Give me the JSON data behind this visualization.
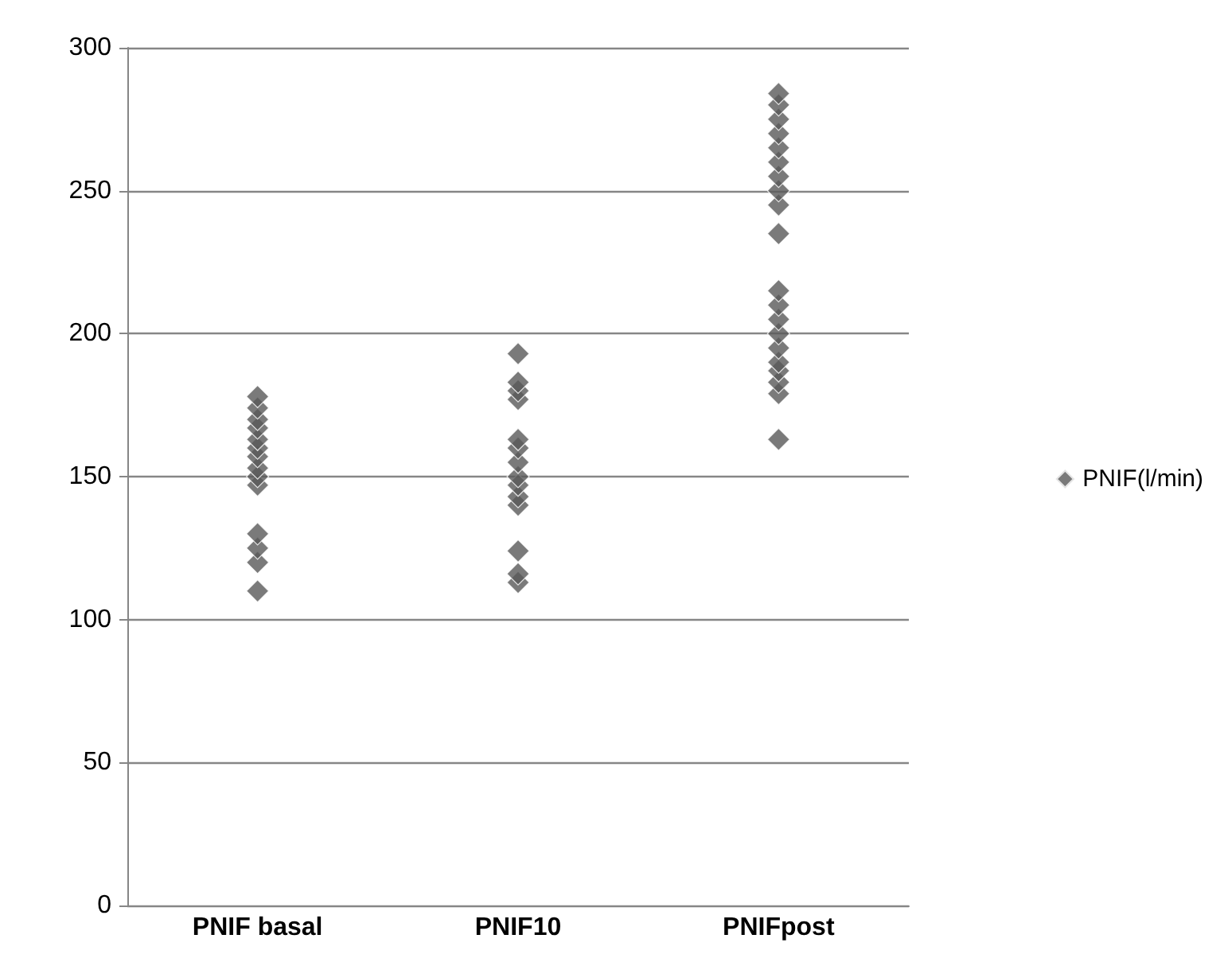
{
  "chart_data": {
    "type": "scatter",
    "categories": [
      "PNIF basal",
      "PNIF10",
      "PNIFpost"
    ],
    "series": [
      {
        "name": "PNIF(l/min)",
        "color": "#595959",
        "x": [
          "PNIF basal",
          "PNIF basal",
          "PNIF basal",
          "PNIF basal",
          "PNIF basal",
          "PNIF basal",
          "PNIF basal",
          "PNIF basal",
          "PNIF basal",
          "PNIF basal",
          "PNIF basal",
          "PNIF basal",
          "PNIF basal",
          "PNIF basal",
          "PNIF10",
          "PNIF10",
          "PNIF10",
          "PNIF10",
          "PNIF10",
          "PNIF10",
          "PNIF10",
          "PNIF10",
          "PNIF10",
          "PNIF10",
          "PNIF10",
          "PNIF10",
          "PNIF10",
          "PNIF10",
          "PNIFpost",
          "PNIFpost",
          "PNIFpost",
          "PNIFpost",
          "PNIFpost",
          "PNIFpost",
          "PNIFpost",
          "PNIFpost",
          "PNIFpost",
          "PNIFpost",
          "PNIFpost",
          "PNIFpost",
          "PNIFpost",
          "PNIFpost",
          "PNIFpost",
          "PNIFpost",
          "PNIFpost",
          "PNIFpost",
          "PNIFpost",
          "PNIFpost"
        ],
        "values": [
          110,
          120,
          125,
          130,
          147,
          150,
          153,
          157,
          160,
          163,
          167,
          170,
          174,
          178,
          113,
          116,
          124,
          140,
          143,
          147,
          150,
          155,
          160,
          163,
          177,
          180,
          183,
          193,
          163,
          179,
          183,
          187,
          190,
          195,
          200,
          205,
          210,
          215,
          235,
          245,
          250,
          255,
          260,
          265,
          270,
          275,
          280,
          284
        ]
      }
    ],
    "ylim": [
      0,
      300
    ],
    "yticks": [
      0,
      50,
      100,
      150,
      200,
      250,
      300
    ],
    "grid": "y",
    "legend": "right",
    "marker": "diamond"
  }
}
